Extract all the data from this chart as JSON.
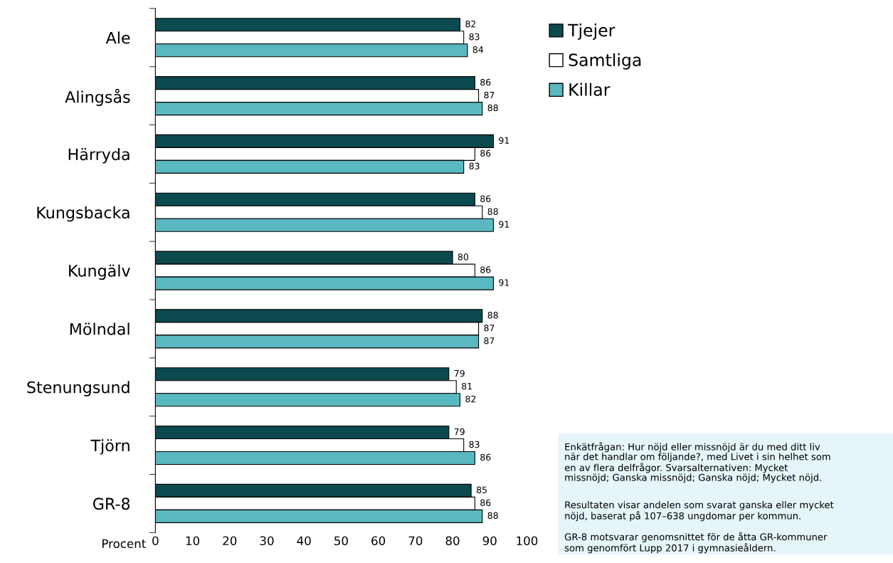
{
  "chart_data": {
    "type": "bar",
    "orientation": "horizontal",
    "xlabel": "Procent",
    "categories": [
      "Ale",
      "Alingsås",
      "Härryda",
      "Kungsbacka",
      "Kungälv",
      "Mölndal",
      "Stenungsund",
      "Tjörn",
      "GR-8"
    ],
    "series": [
      {
        "name": "Tjejer",
        "color": "#0b4a4f",
        "values": [
          82,
          86,
          91,
          86,
          80,
          88,
          79,
          79,
          85
        ]
      },
      {
        "name": "Samtliga",
        "color": "#ffffff",
        "values": [
          83,
          87,
          86,
          88,
          86,
          87,
          81,
          83,
          86
        ]
      },
      {
        "name": "Killar",
        "color": "#5ab8c0",
        "values": [
          84,
          88,
          83,
          91,
          91,
          87,
          82,
          86,
          88
        ]
      }
    ],
    "xlim": [
      0,
      100
    ],
    "xticks": [
      0,
      10,
      20,
      30,
      40,
      50,
      60,
      70,
      80,
      90,
      100
    ],
    "data_labels": true,
    "grid": false,
    "legend": "top right",
    "annotations": [
      "Enkätfrågan: Hur nöjd eller missnöjd är du med ditt liv\nnär det handlar om följande?, med Livet i sin helhet som\nen av flera delfrågor. Svarsalternativen: Mycket\nmissnöjd; Ganska missnöjd; Ganska nöjd; Mycket nöjd.",
      "Resultaten visar andelen som svarat ganska eller mycket\nnöjd, baserat på 107–638 ungdomar per kommun.",
      "GR-8 motsvarar genomsnittet för de åtta GR-kommuner\nsom genomfört Lupp 2017 i gymnasieåldern."
    ]
  }
}
